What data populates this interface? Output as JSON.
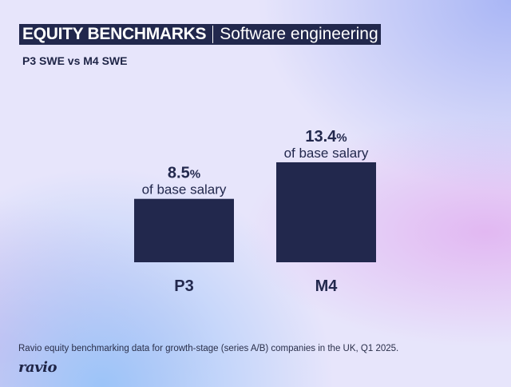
{
  "header": {
    "title": "EQUITY BENCHMARKS",
    "subtitle": "Software engineering",
    "comparison": "P3 SWE vs M4 SWE"
  },
  "chart_data": {
    "type": "bar",
    "categories": [
      "P3",
      "M4"
    ],
    "values": [
      8.5,
      13.4
    ],
    "unit": "%",
    "value_label_suffix": "of base salary",
    "bar_color": "#22284d",
    "ylim": [
      0,
      14
    ],
    "grid": false
  },
  "footer": {
    "note": "Ravio equity benchmarking data for growth-stage (series A/B) companies in the UK,  Q1 2025.",
    "logo": "ravio"
  }
}
